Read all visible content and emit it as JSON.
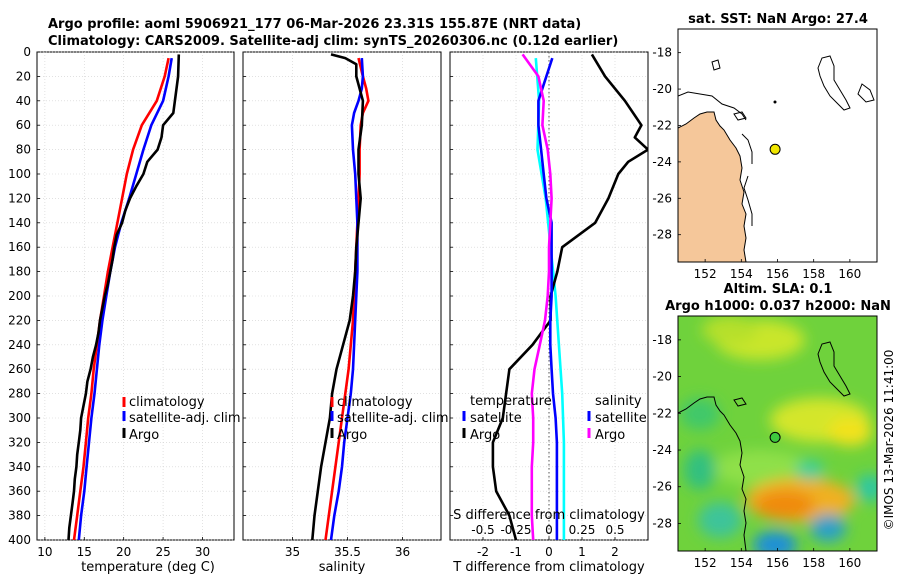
{
  "title": {
    "line1": "Argo profile: aoml 5906921_177 06-Mar-2026 23.31S 155.87E (NRT data)",
    "line2": "Climatology: CARS2009. Satellite-adj clim: synTS_20260306.nc (0.12d earlier)"
  },
  "side_stamp": "©IMOS 13-Mar-2026 11:41:00",
  "colors": {
    "climatology": "#ff0000",
    "satellite": "#0000ff",
    "argo": "#000000",
    "t_sat": "#00ffff",
    "s_diff": "#ff00ff",
    "land": "#f5c79a",
    "map_bg": "#ffffff"
  },
  "chart_data": [
    {
      "id": "temperature",
      "type": "line",
      "xlabel": "temperature (deg C)",
      "xlim": [
        9,
        34
      ],
      "ylim": [
        0,
        400
      ],
      "xticks": [
        10,
        15,
        20,
        25,
        30
      ],
      "yticks": [
        0,
        20,
        40,
        60,
        80,
        100,
        120,
        140,
        160,
        180,
        200,
        220,
        240,
        260,
        280,
        300,
        320,
        340,
        360,
        380,
        400
      ],
      "legend": [
        "climatology",
        "satellite-adj. clim",
        "Argo"
      ],
      "series": [
        {
          "name": "climatology",
          "color": "#ff0000",
          "depth": [
            5,
            20,
            40,
            60,
            80,
            100,
            120,
            140,
            160,
            180,
            200,
            220,
            240,
            260,
            280,
            300,
            320,
            340,
            360,
            380,
            400
          ],
          "values": [
            25.7,
            25.2,
            24.2,
            22.3,
            21.2,
            20.4,
            19.8,
            19.2,
            18.6,
            18.0,
            17.5,
            17.0,
            16.6,
            16.2,
            15.9,
            15.5,
            15.2,
            14.9,
            14.5,
            14.1,
            13.7
          ]
        },
        {
          "name": "satellite-adj. clim",
          "color": "#0000ff",
          "depth": [
            5,
            20,
            40,
            60,
            80,
            100,
            120,
            140,
            160,
            180,
            200,
            220,
            240,
            260,
            280,
            300,
            320,
            340,
            360,
            380,
            400
          ],
          "values": [
            26.1,
            25.7,
            25.0,
            23.5,
            22.5,
            21.6,
            20.7,
            19.7,
            18.9,
            18.3,
            17.8,
            17.3,
            16.9,
            16.6,
            16.3,
            15.9,
            15.6,
            15.3,
            15.0,
            14.6,
            14.3
          ]
        },
        {
          "name": "Argo",
          "color": "#000000",
          "depth": [
            2,
            20,
            40,
            50,
            60,
            70,
            80,
            90,
            100,
            110,
            120,
            130,
            140,
            150,
            160,
            170,
            180,
            190,
            200,
            210,
            220,
            230,
            240,
            250,
            260,
            270,
            280,
            290,
            300,
            310,
            320,
            330,
            340,
            350,
            360,
            370,
            380,
            390,
            400
          ],
          "values": [
            27.0,
            26.9,
            26.5,
            26.3,
            25.0,
            24.8,
            24.3,
            23.0,
            22.5,
            21.6,
            20.8,
            20.2,
            19.8,
            19.1,
            18.8,
            18.6,
            18.3,
            18.0,
            17.6,
            17.3,
            17.0,
            16.8,
            16.5,
            16.1,
            15.8,
            15.4,
            15.2,
            14.9,
            14.6,
            14.5,
            14.3,
            14.1,
            14.0,
            13.8,
            13.7,
            13.5,
            13.3,
            13.1,
            13.0
          ]
        }
      ]
    },
    {
      "id": "salinity",
      "type": "line",
      "xlabel": "salinity",
      "xlim": [
        34.55,
        36.35
      ],
      "ylim": [
        0,
        400
      ],
      "xticks": [
        35,
        35.5,
        36
      ],
      "xticklabels": [
        "35",
        "35.5",
        "36"
      ],
      "legend": [
        "climatology",
        "satellite-adj. clim",
        "Argo"
      ],
      "series": [
        {
          "name": "climatology",
          "color": "#ff0000",
          "depth": [
            5,
            20,
            30,
            40,
            50,
            60,
            80,
            100,
            120,
            140,
            160,
            180,
            200,
            220,
            240,
            260,
            280,
            300,
            320,
            340,
            360,
            380,
            400
          ],
          "values": [
            35.6,
            35.64,
            35.67,
            35.69,
            35.64,
            35.62,
            35.61,
            35.61,
            35.6,
            35.59,
            35.58,
            35.57,
            35.56,
            35.55,
            35.53,
            35.51,
            35.48,
            35.45,
            35.42,
            35.39,
            35.36,
            35.33,
            35.3
          ]
        },
        {
          "name": "satellite-adj. clim",
          "color": "#0000ff",
          "depth": [
            5,
            20,
            30,
            40,
            50,
            60,
            80,
            100,
            120,
            140,
            160,
            180,
            200,
            220,
            240,
            260,
            280,
            300,
            320,
            340,
            360,
            380,
            400
          ],
          "values": [
            35.63,
            35.64,
            35.63,
            35.6,
            35.56,
            35.54,
            35.55,
            35.57,
            35.58,
            35.59,
            35.59,
            35.59,
            35.58,
            35.57,
            35.56,
            35.55,
            35.53,
            35.5,
            35.47,
            35.45,
            35.42,
            35.38,
            35.35
          ]
        },
        {
          "name": "Argo",
          "color": "#000000",
          "depth": [
            2,
            5,
            10,
            20,
            40,
            60,
            80,
            100,
            120,
            140,
            160,
            180,
            200,
            220,
            240,
            260,
            280,
            300,
            320,
            340,
            360,
            380,
            400
          ],
          "values": [
            35.35,
            35.48,
            35.58,
            35.58,
            35.64,
            35.63,
            35.6,
            35.6,
            35.62,
            35.6,
            35.58,
            35.57,
            35.55,
            35.52,
            35.46,
            35.4,
            35.36,
            35.34,
            35.3,
            35.26,
            35.23,
            35.2,
            35.18
          ]
        }
      ]
    },
    {
      "id": "difference",
      "type": "line",
      "xlabel": "T difference from climatology",
      "xlabel_top": "S difference from climatology",
      "xlim": [
        -3,
        3
      ],
      "ylim": [
        0,
        400
      ],
      "xticks": [
        -2,
        -1,
        0,
        1,
        2
      ],
      "top_ticks": [
        -0.5,
        -0.25,
        0,
        0.25,
        0.5
      ],
      "top_ticklabels": [
        "-0.5",
        "-0.25",
        "0",
        "0.25",
        "0.5"
      ],
      "legend_left_title": "temperature",
      "legend_left": [
        "satellite",
        "Argo"
      ],
      "legend_right_title": "salinity",
      "legend_right": [
        "satellite",
        "Argo"
      ],
      "series": [
        {
          "name": "T satellite - clim",
          "color": "#00ffff",
          "depth": [
            5,
            40,
            80,
            120,
            160,
            200,
            240,
            280,
            320,
            360,
            400
          ],
          "values": [
            -0.4,
            -0.3,
            -0.35,
            -0.1,
            0.05,
            0.2,
            0.3,
            0.4,
            0.45,
            0.45,
            0.45
          ]
        },
        {
          "name": "T Argo - clim",
          "color": "#000000",
          "depth": [
            2,
            20,
            40,
            60,
            70,
            80,
            90,
            100,
            120,
            140,
            160,
            180,
            200,
            220,
            240,
            260,
            280,
            300,
            320,
            340,
            360,
            380,
            400
          ],
          "values": [
            1.3,
            1.7,
            2.3,
            2.8,
            2.6,
            3.0,
            2.4,
            2.1,
            1.8,
            1.4,
            0.4,
            0.25,
            0.05,
            0.05,
            -0.5,
            -1.2,
            -1.3,
            -1.4,
            -1.7,
            -1.7,
            -1.6,
            -1.2,
            -1.0
          ]
        },
        {
          "name": "S satellite - clim",
          "color": "#0000ff",
          "depth": [
            5,
            40,
            60,
            80,
            100,
            120,
            140,
            160,
            180,
            200,
            220,
            240,
            260,
            280,
            300,
            320,
            360,
            400
          ],
          "values": [
            0.025,
            -0.08,
            -0.08,
            -0.06,
            -0.04,
            -0.02,
            0.02,
            0.02,
            0.02,
            0.02,
            0.01,
            0.01,
            0.02,
            0.03,
            0.05,
            0.06,
            0.06,
            0.06
          ]
        },
        {
          "name": "S Argo - clim",
          "color": "#ff00ff",
          "depth": [
            2,
            20,
            40,
            60,
            80,
            100,
            120,
            140,
            160,
            180,
            200,
            220,
            240,
            260,
            280,
            300,
            320,
            340,
            360,
            380,
            400
          ],
          "values": [
            -0.2,
            -0.08,
            -0.04,
            -0.05,
            -0.01,
            0.01,
            0.02,
            0.01,
            0.0,
            0.0,
            -0.01,
            -0.03,
            -0.07,
            -0.11,
            -0.13,
            -0.12,
            -0.12,
            -0.13,
            -0.13,
            -0.13,
            -0.12
          ]
        }
      ]
    },
    {
      "id": "sst_map",
      "type": "heatmap",
      "title": "sat. SST: NaN Argo: 27.4",
      "xlim": [
        150.5,
        161.5
      ],
      "ylim": [
        -29.5,
        -16.7
      ],
      "xticks": [
        152,
        154,
        156,
        158,
        160
      ],
      "yticks": [
        -18,
        -20,
        -22,
        -24,
        -26,
        -28
      ],
      "argo_position": [
        155.87,
        -23.31
      ]
    },
    {
      "id": "sla_map",
      "type": "heatmap",
      "title_line1": "Altim. SLA: 0.1",
      "title_line2": "Argo h1000: 0.037 h2000: NaN",
      "xlim": [
        150.5,
        161.5
      ],
      "ylim": [
        -29.5,
        -16.7
      ],
      "xticks": [
        152,
        154,
        156,
        158,
        160
      ],
      "yticks": [
        -18,
        -20,
        -22,
        -24,
        -26,
        -28
      ],
      "argo_position": [
        155.87,
        -23.31
      ]
    }
  ]
}
